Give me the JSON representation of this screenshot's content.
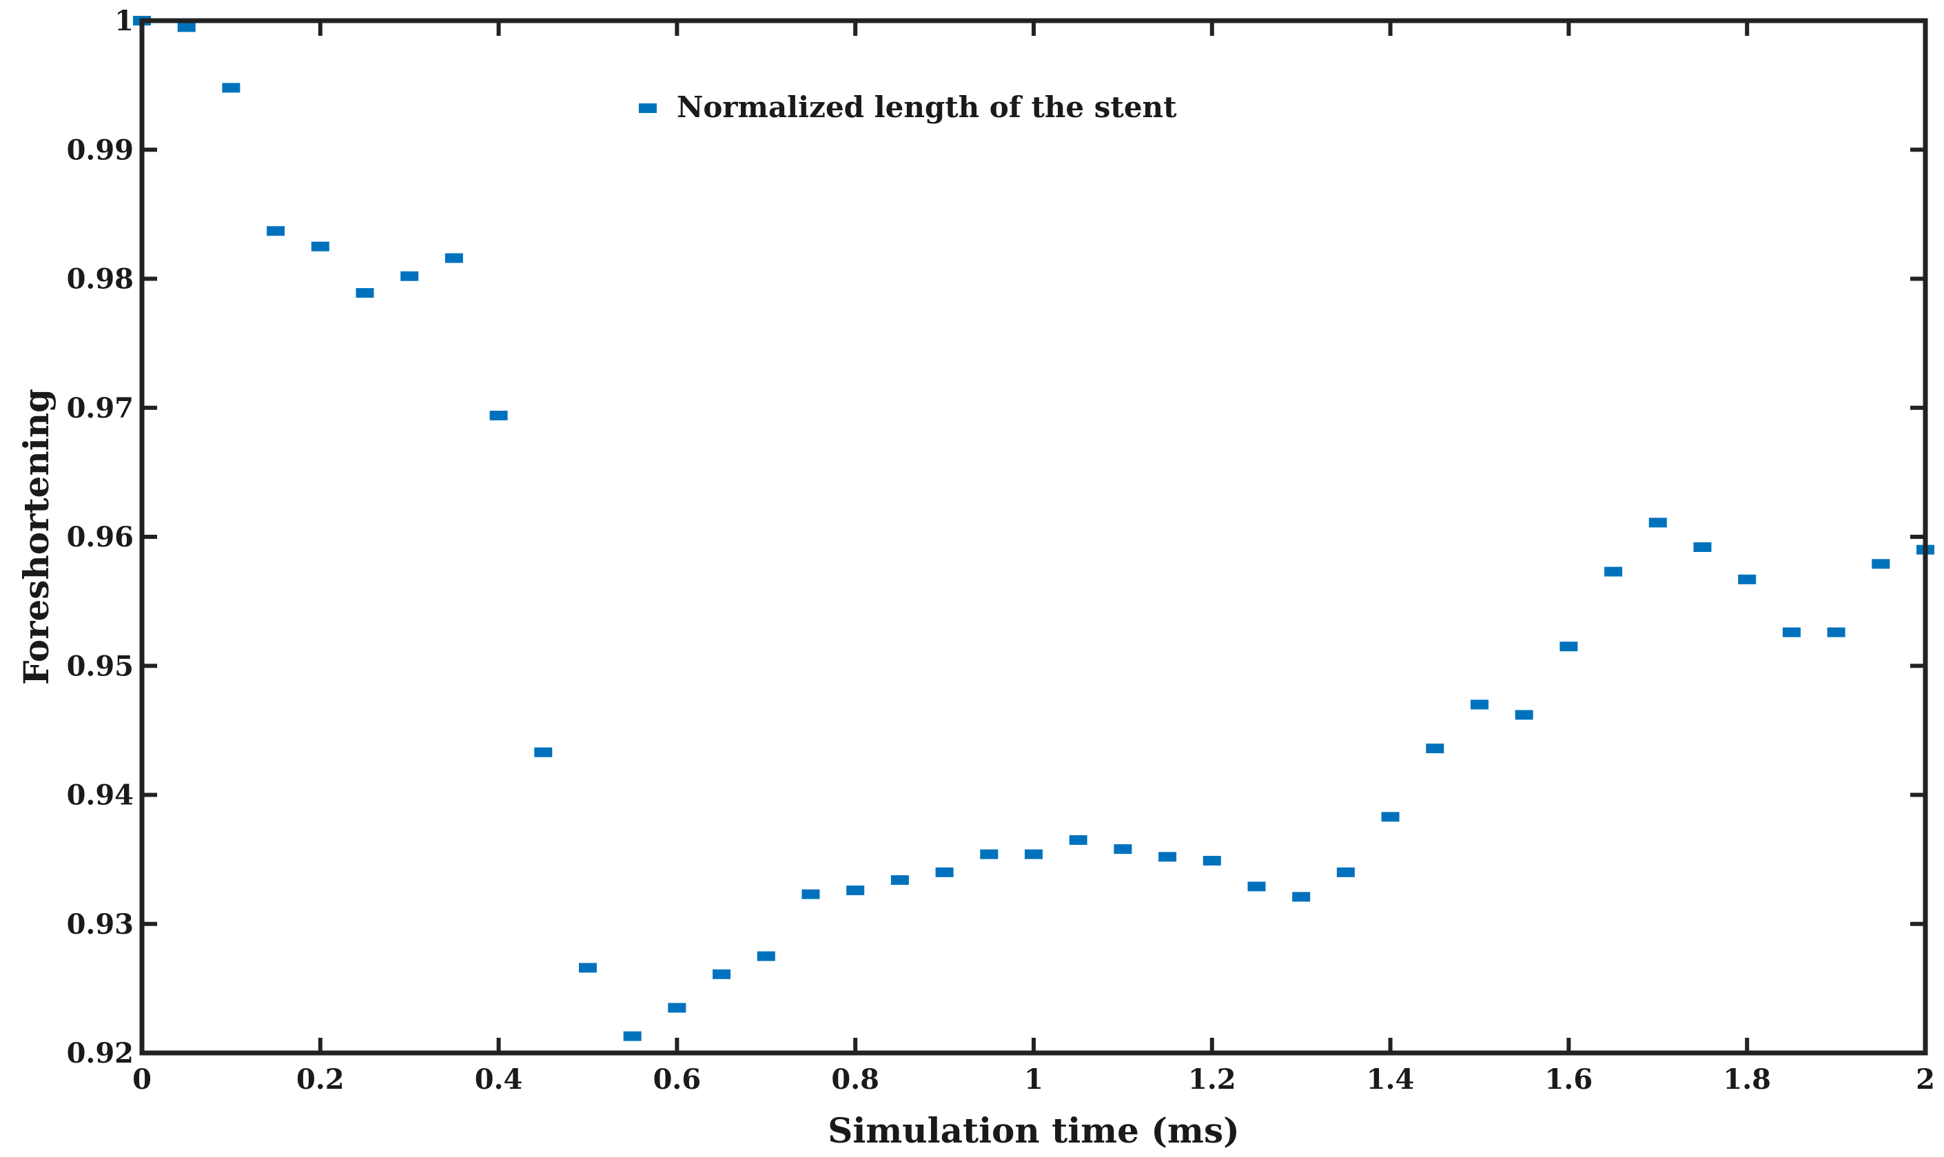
{
  "chart_data": {
    "type": "scatter",
    "title": "",
    "xlabel": "Simulation time (ms)",
    "ylabel": "Foreshortening",
    "xlim": [
      0,
      2
    ],
    "ylim": [
      0.92,
      1
    ],
    "xticks": [
      0,
      0.2,
      0.4,
      0.6,
      0.8,
      1,
      1.2,
      1.4,
      1.6,
      1.8,
      2
    ],
    "xtick_labels": [
      "0",
      "0.2",
      "0.4",
      "0.6",
      "0.8",
      "1",
      "1.2",
      "1.4",
      "1.6",
      "1.8",
      "2"
    ],
    "yticks": [
      0.92,
      0.93,
      0.94,
      0.95,
      0.96,
      0.97,
      0.98,
      0.99,
      1
    ],
    "ytick_labels": [
      "0.92",
      "0.93",
      "0.94",
      "0.95",
      "0.96",
      "0.97",
      "0.98",
      "0.99",
      "1"
    ],
    "grid": false,
    "legend_position": "top-center",
    "marker_color": "#0072bd",
    "series": [
      {
        "name": "Normalized length of the stent",
        "x": [
          0,
          0.05,
          0.1,
          0.15,
          0.2,
          0.25,
          0.3,
          0.35,
          0.4,
          0.45,
          0.5,
          0.55,
          0.6,
          0.65,
          0.7,
          0.75,
          0.8,
          0.85,
          0.9,
          0.95,
          1,
          1.05,
          1.1,
          1.15,
          1.2,
          1.25,
          1.3,
          1.35,
          1.4,
          1.45,
          1.5,
          1.55,
          1.6,
          1.65,
          1.7,
          1.75,
          1.8,
          1.85,
          1.9,
          1.95,
          2
        ],
        "y": [
          1.0,
          0.9995,
          0.9948,
          0.9837,
          0.9825,
          0.9789,
          0.9802,
          0.9816,
          0.9694,
          0.9433,
          0.9266,
          0.9213,
          0.9235,
          0.9261,
          0.9275,
          0.9323,
          0.9326,
          0.9334,
          0.934,
          0.9354,
          0.9354,
          0.9365,
          0.9358,
          0.9352,
          0.9349,
          0.9329,
          0.9321,
          0.934,
          0.9383,
          0.9436,
          0.947,
          0.9462,
          0.9515,
          0.9573,
          0.9611,
          0.9592,
          0.9567,
          0.9526,
          0.9526,
          0.9579,
          0.959
        ]
      }
    ]
  }
}
